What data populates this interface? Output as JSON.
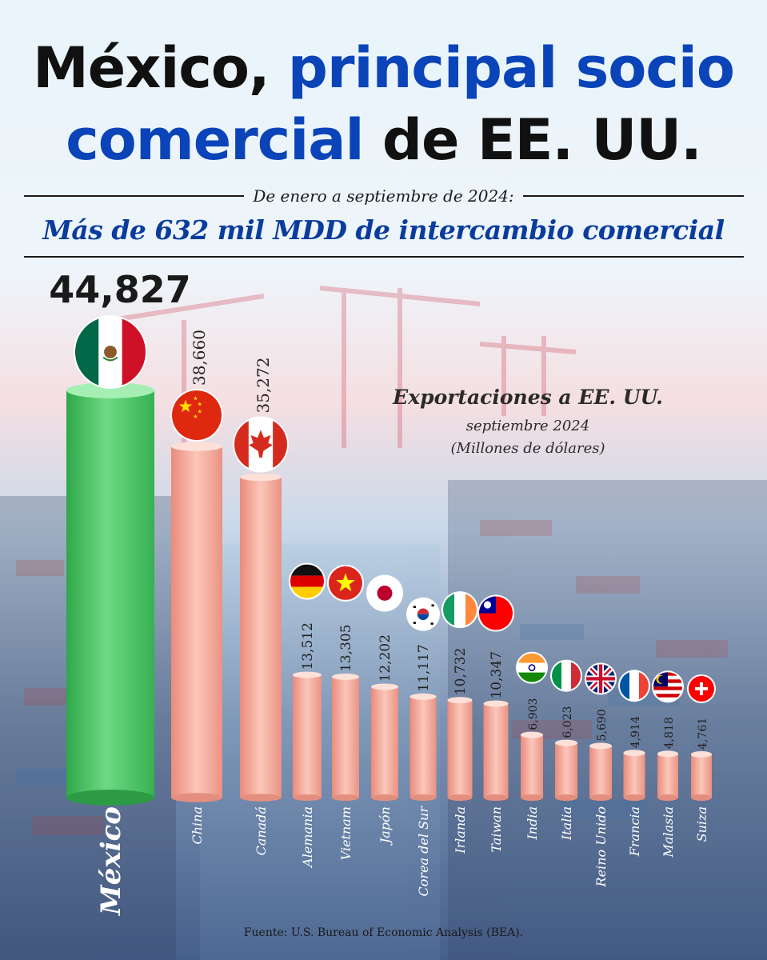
{
  "title": {
    "line1_black": "México,",
    "line1_blue": "principal socio",
    "line2_blue": "comercial",
    "line2_black": "de EE. UU."
  },
  "period": "De enero a septiembre de 2024:",
  "headline": "Más de 632 mil MDD de intercambio comercial",
  "source": "Fuente: U.S. Bureau of Economic Analysis (BEA).",
  "colors": {
    "title_blue": "#0a44b8",
    "headline_blue": "#0a3c9e",
    "mexico_bar": "#4cc864",
    "other_bar": "#f2a99a"
  },
  "chart_data": {
    "type": "bar",
    "title": "Exportaciones a EE. UU.",
    "subtitle": "septiembre 2024",
    "unit_label": "(Millones de dólares)",
    "highlight": "México",
    "categories": [
      "México",
      "China",
      "Canadá",
      "Alemania",
      "Vietnam",
      "Japón",
      "Corea del Sur",
      "Irlanda",
      "Taiwan",
      "India",
      "Italia",
      "Reino Unido",
      "Francia",
      "Malasia",
      "Suiza"
    ],
    "values": [
      44827,
      38660,
      35272,
      13512,
      13305,
      12202,
      11117,
      10732,
      10347,
      6903,
      6023,
      5690,
      4914,
      4818,
      4761
    ],
    "value_labels": [
      "44,827",
      "38,660",
      "35,272",
      "13,512",
      "13,305",
      "12,202",
      "11,117",
      "10,732",
      "10,347",
      "6,903",
      "6,023",
      "5,690",
      "4,914",
      "4,818",
      "4,761"
    ],
    "flags": [
      "mexico-flag",
      "china-flag",
      "canada-flag",
      "germany-flag",
      "vietnam-flag",
      "japan-flag",
      "south-korea-flag",
      "ireland-flag",
      "taiwan-flag",
      "india-flag",
      "italy-flag",
      "uk-flag",
      "france-flag",
      "malaysia-flag",
      "switzerland-flag"
    ]
  }
}
